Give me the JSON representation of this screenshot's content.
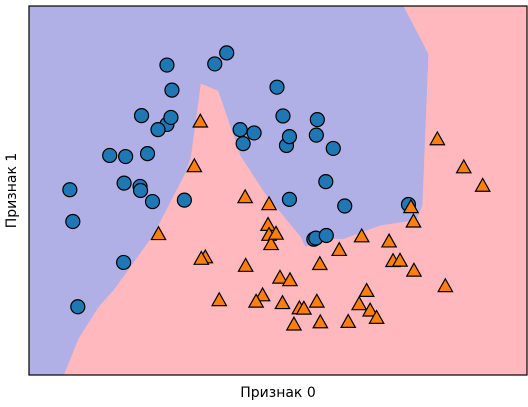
{
  "chart_data": {
    "type": "scatter",
    "title": "",
    "xlabel": "Признак 0",
    "ylabel": "Признак 1",
    "xlim": [
      0,
      100
    ],
    "ylim": [
      0,
      100
    ],
    "grid": false,
    "ticks_visible": false,
    "decision_regions": [
      {
        "class": 0,
        "color": "#b0b0e6",
        "polygon": [
          [
            0,
            0
          ],
          [
            0,
            100
          ],
          [
            75.2,
            100
          ],
          [
            80.2,
            87
          ],
          [
            79,
            46
          ],
          [
            77.8,
            42
          ],
          [
            70.5,
            40.5
          ],
          [
            63,
            36.8
          ],
          [
            60,
            37
          ],
          [
            55.5,
            34.8
          ],
          [
            54.5,
            37.5
          ],
          [
            47.5,
            49
          ],
          [
            42.5,
            59.3
          ],
          [
            38,
            77
          ],
          [
            34.5,
            79
          ],
          [
            32.5,
            59
          ],
          [
            31.5,
            55
          ],
          [
            25,
            38
          ],
          [
            17,
            23
          ],
          [
            14,
            18.5
          ],
          [
            10,
            10
          ],
          [
            7,
            0
          ]
        ]
      },
      {
        "class": 1,
        "color": "#ffb8be"
      }
    ],
    "series": [
      {
        "marker": "circle",
        "color": "#1f77b4",
        "points": [
          [
            27.7,
            84
          ],
          [
            39.7,
            87.3
          ],
          [
            37.3,
            84.3
          ],
          [
            28.7,
            77.2
          ],
          [
            22.6,
            70.3
          ],
          [
            27.7,
            67.9
          ],
          [
            28.5,
            69.8
          ],
          [
            25.9,
            66.5
          ],
          [
            16.2,
            59.5
          ],
          [
            19.4,
            59.2
          ],
          [
            23.8,
            60
          ],
          [
            49.8,
            78
          ],
          [
            42.4,
            66.5
          ],
          [
            45.2,
            65.6
          ],
          [
            43,
            62.7
          ],
          [
            51,
            70.2
          ],
          [
            51.7,
            62.2
          ],
          [
            52.3,
            64.6
          ],
          [
            57.9,
            69.2
          ],
          [
            57.7,
            65
          ],
          [
            61.1,
            61.4
          ],
          [
            59.6,
            52.4
          ],
          [
            8.2,
            50.2
          ],
          [
            19.1,
            52
          ],
          [
            22.3,
            51.1
          ],
          [
            22.4,
            50
          ],
          [
            24.8,
            47
          ],
          [
            31.2,
            47.4
          ],
          [
            52.3,
            47.6
          ],
          [
            63.4,
            45.8
          ],
          [
            57.2,
            36.8
          ],
          [
            57.6,
            37.1
          ],
          [
            59.7,
            37.8
          ],
          [
            76.2,
            46.2
          ],
          [
            8.8,
            41.6
          ],
          [
            19,
            30.5
          ],
          [
            9.8,
            18.5
          ]
        ]
      },
      {
        "marker": "triangle",
        "color": "#ff7f0e",
        "points": [
          [
            34.4,
            68.5
          ],
          [
            33.2,
            56.4
          ],
          [
            82,
            63.7
          ],
          [
            87.3,
            56.1
          ],
          [
            91.1,
            51.1
          ],
          [
            43.4,
            48
          ],
          [
            48.2,
            46.1
          ],
          [
            48,
            40.5
          ],
          [
            48.2,
            37.8
          ],
          [
            48.6,
            35.3
          ],
          [
            49.6,
            38.1
          ],
          [
            26,
            38
          ],
          [
            35.4,
            31.7
          ],
          [
            34.6,
            31.3
          ],
          [
            43.5,
            29.4
          ],
          [
            50.4,
            26.2
          ],
          [
            52.4,
            25.5
          ],
          [
            58.4,
            29.9
          ],
          [
            62.3,
            33.7
          ],
          [
            66.8,
            37.4
          ],
          [
            72.3,
            36
          ],
          [
            73.1,
            30.7
          ],
          [
            74.5,
            30.8
          ],
          [
            77.2,
            41.4
          ],
          [
            76.7,
            45.3
          ],
          [
            77.3,
            28.1
          ],
          [
            83.6,
            23.9
          ],
          [
            38.2,
            20.1
          ],
          [
            46.9,
            21.4
          ],
          [
            45.6,
            19.7
          ],
          [
            50.9,
            19.3
          ],
          [
            54.3,
            17.9
          ],
          [
            55.2,
            17.8
          ],
          [
            57.8,
            19.7
          ],
          [
            53.2,
            13.5
          ],
          [
            58.5,
            14.1
          ],
          [
            64.1,
            14.2
          ],
          [
            66.3,
            19
          ],
          [
            67.8,
            22.6
          ],
          [
            68.5,
            17.3
          ],
          [
            69.8,
            15.3
          ]
        ]
      }
    ]
  }
}
